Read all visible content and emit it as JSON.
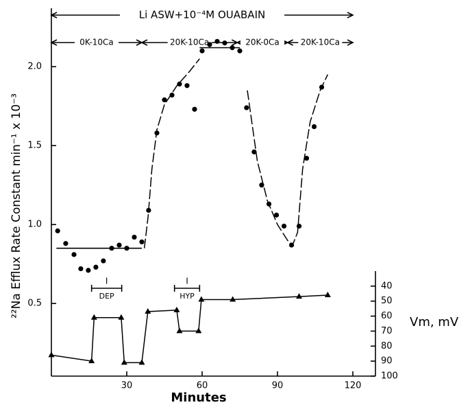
{
  "chart_data": {
    "type": "scatter",
    "title": "Li ASW+10⁻⁴M OUABAIN",
    "title_range": [
      0,
      120
    ],
    "x_label": "Minutes",
    "y_label": "²²Na Efflux Rate Constant min⁻¹ x 10⁻³",
    "y2_label": "Vm, mV",
    "xlim": [
      0,
      129
    ],
    "xticks": [
      30,
      60,
      90,
      120
    ],
    "ylim": [
      0.04,
      2.37
    ],
    "yticks": [
      0.5,
      {
        "value": 1,
        "label": "1.0"
      },
      1.5,
      {
        "value": 2,
        "label": "2.0"
      }
    ],
    "y2lim": [
      100,
      30
    ],
    "y2ticks": [
      40,
      50,
      60,
      70,
      80,
      90,
      100
    ],
    "segments": [
      {
        "label": "0K-10Ca",
        "start": 0,
        "end": 36
      },
      {
        "label": "20K-10Ca",
        "start": 36,
        "end": 74
      },
      {
        "label": "20K-0Ca",
        "start": 74,
        "end": 94
      },
      {
        "label": "20K-10Ca",
        "start": 94,
        "end": 120
      }
    ],
    "pulses": [
      {
        "mark": "I",
        "label": "DEP",
        "start": 16,
        "end": 28
      },
      {
        "mark": "I",
        "label": "HYP",
        "start": 49,
        "end": 59
      }
    ],
    "means": [
      {
        "start": 2,
        "end": 36,
        "value": 0.85
      },
      {
        "start": 59,
        "end": 75,
        "value": 2.12
      }
    ],
    "series": [
      {
        "marker": "circle",
        "color": "#000000",
        "x": [
          2.5,
          5.7,
          9,
          11.7,
          14.7,
          17.7,
          20.7,
          24,
          27,
          30,
          33,
          36,
          38.7,
          42,
          45,
          48,
          51,
          54,
          57,
          60,
          63,
          66,
          69,
          72,
          75,
          77.7,
          80.7,
          83.7,
          86.6,
          89.6,
          92.6,
          95.6,
          98.6,
          101.6,
          104.6,
          107.6
        ],
        "values": [
          0.96,
          0.88,
          0.81,
          0.72,
          0.71,
          0.73,
          0.77,
          0.85,
          0.87,
          0.85,
          0.92,
          0.89,
          1.09,
          1.58,
          1.79,
          1.82,
          1.89,
          1.88,
          1.73,
          2.1,
          2.14,
          2.16,
          2.15,
          2.12,
          2.1,
          1.74,
          1.46,
          1.25,
          1.13,
          1.06,
          0.99,
          0.87,
          0.99,
          1.42,
          1.62,
          1.87
        ]
      },
      {
        "marker": "none",
        "dashed": true,
        "color": "#000000",
        "x": [
          37,
          38.5,
          40,
          42,
          45,
          50,
          55,
          59,
          75,
          78,
          82,
          86,
          90,
          94,
          96,
          98,
          100,
          103,
          107,
          110
        ],
        "values": [
          0.85,
          1.05,
          1.35,
          1.6,
          1.76,
          1.88,
          1.97,
          2.05,
          null,
          1.85,
          1.4,
          1.15,
          1.0,
          0.9,
          0.87,
          0.95,
          1.35,
          1.65,
          1.85,
          1.95
        ]
      },
      {
        "marker": "triangle",
        "axis": "y2",
        "color": "#000000",
        "x": [
          0,
          16,
          17,
          27.8,
          29,
          36,
          38.4,
          49.9,
          51,
          58.6,
          59.7,
          72.2,
          98.6,
          110
        ],
        "values": [
          86,
          90,
          61,
          61,
          91,
          91,
          57,
          56,
          70,
          70,
          49,
          49,
          47,
          46
        ]
      }
    ]
  }
}
